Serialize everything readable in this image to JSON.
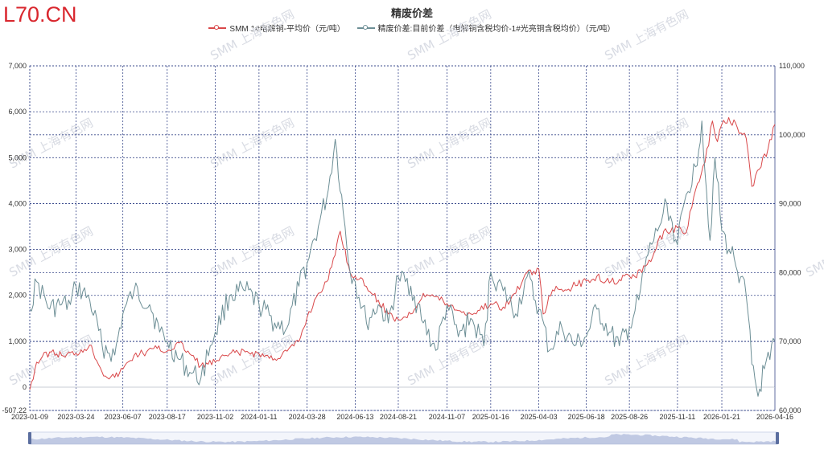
{
  "logo": "L70.CN",
  "watermark": "SMM 上海有色网",
  "colors": {
    "copper": "#d9484a",
    "spread": "#6c8e95",
    "grid": "#3b4a8c",
    "zoom_fill": "#a9b6d9"
  },
  "chart_data": {
    "type": "line",
    "title": "精废价差",
    "legend_position": "top-center",
    "grid": true,
    "x_ticks": [
      "2023-01-09",
      "2023-03-24",
      "2023-06-07",
      "2023-08-17",
      "2023-11-02",
      "2024-01-11",
      "2024-03-28",
      "2024-06-13",
      "2024-08-21",
      "2024-11-07",
      "2025-01-16",
      "2025-04-03",
      "2025-06-18",
      "2025-08-26",
      "2025-11-11",
      "2026-01-21",
      "2026-04-16"
    ],
    "x_range": [
      "2023-01-09",
      "2026-04-16"
    ],
    "y_left": {
      "ticks": [
        "-507.22",
        "0",
        "1,000",
        "2,000",
        "3,000",
        "4,000",
        "5,000",
        "6,000",
        "7,000"
      ],
      "range": [
        -507.22,
        7000
      ]
    },
    "y_right": {
      "ticks": [
        "60,000",
        "70,000",
        "80,000",
        "90,000",
        "100,000",
        "110,000"
      ],
      "range": [
        60000,
        110000
      ]
    },
    "series": [
      {
        "name": "SMM 1#电解铜-平均价（元/吨）",
        "axis": "right",
        "points": [
          [
            "2023-01-09",
            63000
          ],
          [
            "2023-01-20",
            67000
          ],
          [
            "2023-02-10",
            68500
          ],
          [
            "2023-03-01",
            68000
          ],
          [
            "2023-03-24",
            68300
          ],
          [
            "2023-04-15",
            69500
          ],
          [
            "2023-05-10",
            65000
          ],
          [
            "2023-05-25",
            64800
          ],
          [
            "2023-06-07",
            66000
          ],
          [
            "2023-06-25",
            68000
          ],
          [
            "2023-07-15",
            68500
          ],
          [
            "2023-08-01",
            69000
          ],
          [
            "2023-08-17",
            68600
          ],
          [
            "2023-09-05",
            69800
          ],
          [
            "2023-09-25",
            68000
          ],
          [
            "2023-10-10",
            66500
          ],
          [
            "2023-11-02",
            67000
          ],
          [
            "2023-11-25",
            68200
          ],
          [
            "2023-12-20",
            68500
          ],
          [
            "2024-01-11",
            68200
          ],
          [
            "2024-02-05",
            67500
          ],
          [
            "2024-02-25",
            68600
          ],
          [
            "2024-03-15",
            70000
          ],
          [
            "2024-03-28",
            73500
          ],
          [
            "2024-04-15",
            77000
          ],
          [
            "2024-05-01",
            79000
          ],
          [
            "2024-05-20",
            86000
          ],
          [
            "2024-06-05",
            80000
          ],
          [
            "2024-06-13",
            79500
          ],
          [
            "2024-07-01",
            78000
          ],
          [
            "2024-07-20",
            76000
          ],
          [
            "2024-08-05",
            74000
          ],
          [
            "2024-08-21",
            73200
          ],
          [
            "2024-09-10",
            74000
          ],
          [
            "2024-09-30",
            77000
          ],
          [
            "2024-10-20",
            76500
          ],
          [
            "2024-11-07",
            75500
          ],
          [
            "2024-11-25",
            74500
          ],
          [
            "2024-12-15",
            74000
          ],
          [
            "2025-01-16",
            75500
          ],
          [
            "2025-02-05",
            75000
          ],
          [
            "2025-02-25",
            77000
          ],
          [
            "2025-03-15",
            80000
          ],
          [
            "2025-04-03",
            80500
          ],
          [
            "2025-04-10",
            74000
          ],
          [
            "2025-04-25",
            77500
          ],
          [
            "2025-05-15",
            77500
          ],
          [
            "2025-06-18",
            78800
          ],
          [
            "2025-07-05",
            79500
          ],
          [
            "2025-07-25",
            78500
          ],
          [
            "2025-08-10",
            79000
          ],
          [
            "2025-08-26",
            79500
          ],
          [
            "2025-09-15",
            80000
          ],
          [
            "2025-10-05",
            83000
          ],
          [
            "2025-10-20",
            86000
          ],
          [
            "2025-11-11",
            86500
          ],
          [
            "2025-11-25",
            85800
          ],
          [
            "2025-12-10",
            92000
          ],
          [
            "2025-12-25",
            96000
          ],
          [
            "2026-01-06",
            102000
          ],
          [
            "2026-01-14",
            99000
          ],
          [
            "2026-01-21",
            101500
          ],
          [
            "2026-02-01",
            102500
          ],
          [
            "2026-02-15",
            101000
          ],
          [
            "2026-03-01",
            99500
          ],
          [
            "2026-03-10",
            92500
          ],
          [
            "2026-03-22",
            95000
          ],
          [
            "2026-04-05",
            98000
          ],
          [
            "2026-04-16",
            101500
          ]
        ]
      },
      {
        "name": "精废价差:目前价差（电解铜含税均价-1#光亮铜含税均价）（元/吨）",
        "axis": "left",
        "points": [
          [
            "2023-01-09",
            1700
          ],
          [
            "2023-01-20",
            2300
          ],
          [
            "2023-02-10",
            1700
          ],
          [
            "2023-03-01",
            1800
          ],
          [
            "2023-03-15",
            1800
          ],
          [
            "2023-03-24",
            2200
          ],
          [
            "2023-04-15",
            1900
          ],
          [
            "2023-05-05",
            900
          ],
          [
            "2023-05-25",
            700
          ],
          [
            "2023-06-07",
            1600
          ],
          [
            "2023-06-25",
            2100
          ],
          [
            "2023-07-20",
            1800
          ],
          [
            "2023-08-05",
            1200
          ],
          [
            "2023-08-17",
            1000
          ],
          [
            "2023-09-05",
            600
          ],
          [
            "2023-09-25",
            300
          ],
          [
            "2023-10-10",
            200
          ],
          [
            "2023-10-25",
            900
          ],
          [
            "2023-11-02",
            1200
          ],
          [
            "2023-11-25",
            2000
          ],
          [
            "2023-12-20",
            2100
          ],
          [
            "2024-01-11",
            1800
          ],
          [
            "2024-02-05",
            1400
          ],
          [
            "2024-02-25",
            1300
          ],
          [
            "2024-03-15",
            2200
          ],
          [
            "2024-03-28",
            2700
          ],
          [
            "2024-04-15",
            3500
          ],
          [
            "2024-05-01",
            4300
          ],
          [
            "2024-05-12",
            5400
          ],
          [
            "2024-05-25",
            3800
          ],
          [
            "2024-06-05",
            2500
          ],
          [
            "2024-06-13",
            2300
          ],
          [
            "2024-07-01",
            1400
          ],
          [
            "2024-07-20",
            1800
          ],
          [
            "2024-08-05",
            1400
          ],
          [
            "2024-08-21",
            2400
          ],
          [
            "2024-09-10",
            2200
          ],
          [
            "2024-09-30",
            1400
          ],
          [
            "2024-10-20",
            800
          ],
          [
            "2024-11-07",
            1800
          ],
          [
            "2024-11-25",
            1100
          ],
          [
            "2024-12-15",
            1500
          ],
          [
            "2025-01-05",
            900
          ],
          [
            "2025-01-16",
            2500
          ],
          [
            "2025-02-05",
            2100
          ],
          [
            "2025-02-25",
            1600
          ],
          [
            "2025-03-15",
            2400
          ],
          [
            "2025-04-03",
            1700
          ],
          [
            "2025-04-20",
            800
          ],
          [
            "2025-05-10",
            1300
          ],
          [
            "2025-05-30",
            900
          ],
          [
            "2025-06-18",
            1100
          ],
          [
            "2025-07-05",
            1700
          ],
          [
            "2025-07-25",
            1200
          ],
          [
            "2025-08-10",
            900
          ],
          [
            "2025-08-26",
            1300
          ],
          [
            "2025-09-10",
            1900
          ],
          [
            "2025-09-25",
            2900
          ],
          [
            "2025-10-10",
            3400
          ],
          [
            "2025-10-25",
            4000
          ],
          [
            "2025-11-11",
            3100
          ],
          [
            "2025-11-25",
            4200
          ],
          [
            "2025-12-10",
            4800
          ],
          [
            "2025-12-20",
            5800
          ],
          [
            "2026-01-02",
            3200
          ],
          [
            "2026-01-10",
            5000
          ],
          [
            "2026-01-21",
            3400
          ],
          [
            "2026-02-01",
            3000
          ],
          [
            "2026-02-10",
            2800
          ],
          [
            "2026-02-20",
            2400
          ],
          [
            "2026-03-01",
            2000
          ],
          [
            "2026-03-10",
            500
          ],
          [
            "2026-03-20",
            -200
          ],
          [
            "2026-03-30",
            400
          ],
          [
            "2026-04-08",
            600
          ],
          [
            "2026-04-16",
            1000
          ]
        ]
      }
    ]
  }
}
